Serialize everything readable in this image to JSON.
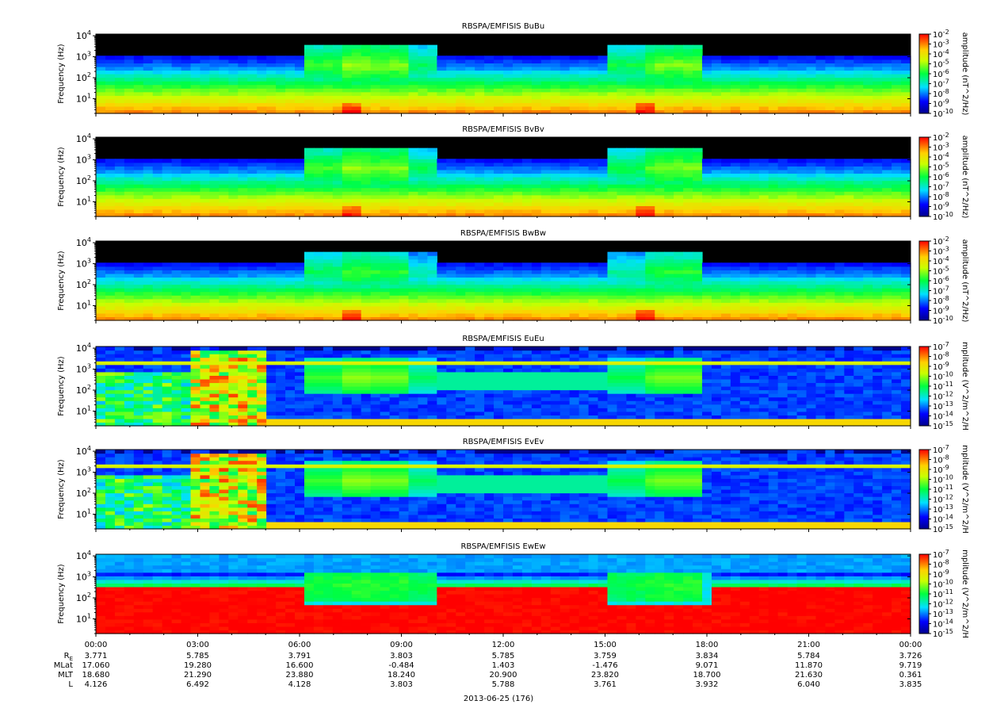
{
  "chart_data": {
    "type": "heatmap",
    "x_axis": {
      "tick_labels": [
        "00:00",
        "03:00",
        "06:00",
        "09:00",
        "12:00",
        "15:00",
        "18:00",
        "21:00",
        "00:00"
      ],
      "range_hours": [
        0,
        24
      ],
      "date_label": "2013-06-25 (176)",
      "ephemeris": [
        {
          "label": "RE",
          "values": [
            "3.771",
            "5.785",
            "3.791",
            "3.803",
            "5.785",
            "3.759",
            "3.834",
            "5.784",
            "3.726"
          ]
        },
        {
          "label": "MLat",
          "values": [
            "17.060",
            "19.280",
            "16.600",
            "-0.484",
            "1.403",
            "-1.476",
            "9.071",
            "11.870",
            "9.719"
          ]
        },
        {
          "label": "MLT",
          "values": [
            "18.680",
            "21.290",
            "23.880",
            "18.240",
            "20.900",
            "23.820",
            "18.700",
            "21.630",
            "0.361"
          ]
        },
        {
          "label": "L",
          "values": [
            "4.126",
            "6.492",
            "4.128",
            "3.803",
            "5.788",
            "3.761",
            "3.932",
            "6.040",
            "3.835"
          ]
        }
      ]
    },
    "y_axis": {
      "label": "Frequency (Hz)",
      "scale": "log",
      "range": [
        2,
        12000
      ],
      "tick_labels": [
        "10^1",
        "10^2",
        "10^3",
        "10^4"
      ],
      "tick_values": [
        10,
        100,
        1000,
        10000
      ]
    },
    "panels": [
      {
        "title": "RBSPA/EMFISIS  BuBu",
        "colorbar_label": "amplitude (nT^2/Hz)",
        "colorbar_exponents": [
          -2,
          -3,
          -4,
          -5,
          -6,
          -7,
          -8,
          -9,
          -10
        ],
        "kind": "B"
      },
      {
        "title": "RBSPA/EMFISIS  BvBv",
        "colorbar_label": "amplitude (nT^2/Hz)",
        "colorbar_exponents": [
          -2,
          -3,
          -4,
          -5,
          -6,
          -7,
          -8,
          -9,
          -10
        ],
        "kind": "B"
      },
      {
        "title": "RBSPA/EMFISIS  BwBw",
        "colorbar_label": "amplitude (nT^2/Hz)",
        "colorbar_exponents": [
          -2,
          -3,
          -4,
          -5,
          -6,
          -7,
          -8,
          -9,
          -10
        ],
        "kind": "Bw"
      },
      {
        "title": "RBSPA/EMFISIS  EuEu",
        "colorbar_label": "mplitude (V^2/m^2/H",
        "colorbar_exponents": [
          -7,
          -8,
          -9,
          -10,
          -11,
          -12,
          -13,
          -14,
          -15
        ],
        "kind": "E"
      },
      {
        "title": "RBSPA/EMFISIS  EvEv",
        "colorbar_label": "mplitude (V^2/m^2/H",
        "colorbar_exponents": [
          -7,
          -8,
          -9,
          -10,
          -11,
          -12,
          -13,
          -14,
          -15
        ],
        "kind": "E"
      },
      {
        "title": "RBSPA/EMFISIS  EwEw",
        "colorbar_label": "mplitude (V^2/m^2/H",
        "colorbar_exponents": [
          -7,
          -8,
          -9,
          -10,
          -11,
          -12,
          -13,
          -14,
          -15
        ],
        "kind": "Ew"
      }
    ]
  }
}
